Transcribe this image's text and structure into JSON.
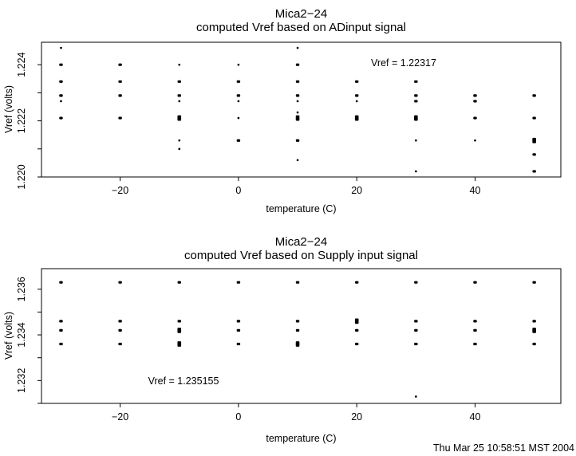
{
  "page": {
    "footer": "Thu Mar 25 10:58:51 MST 2004"
  },
  "chart_data": [
    {
      "type": "scatter",
      "title": "Mica2−24",
      "subtitle": "computed Vref based on ADinput signal",
      "xlabel": "temperature (C)",
      "ylabel": "Vref (volts)",
      "annotation": "Vref = 1.22317",
      "annotation_at": {
        "x": 28,
        "y": 1.2241
      },
      "xlim": [
        -33.3,
        54.5
      ],
      "ylim": [
        1.22,
        1.2248
      ],
      "xticks": [
        -20,
        0,
        20,
        40
      ],
      "xtick_labels": [
        "−20",
        "0",
        "20",
        "40"
      ],
      "yticks": [
        1.22,
        1.221,
        1.222,
        1.223,
        1.224
      ],
      "ytick_labels": [
        "1.220",
        "",
        "1.222",
        "",
        "1.224"
      ],
      "grid": false,
      "marker_color": "#000000",
      "points": [
        [
          -30,
          1.2246,
          1
        ],
        [
          -30,
          1.224,
          2
        ],
        [
          -30,
          1.2234,
          2
        ],
        [
          -30,
          1.2229,
          2
        ],
        [
          -30,
          1.2227,
          1
        ],
        [
          -30,
          1.2221,
          2
        ],
        [
          -20,
          1.224,
          2
        ],
        [
          -20,
          1.2234,
          2
        ],
        [
          -20,
          1.2229,
          2
        ],
        [
          -20,
          1.2221,
          2
        ],
        [
          -10,
          1.224,
          1
        ],
        [
          -10,
          1.2234,
          2
        ],
        [
          -10,
          1.2229,
          2
        ],
        [
          -10,
          1.2227,
          1
        ],
        [
          -10,
          1.2221,
          3
        ],
        [
          -10,
          1.2213,
          1
        ],
        [
          -10,
          1.221,
          1
        ],
        [
          0,
          1.224,
          1
        ],
        [
          0,
          1.2234,
          2
        ],
        [
          0,
          1.2229,
          2
        ],
        [
          0,
          1.2227,
          1
        ],
        [
          0,
          1.2221,
          1
        ],
        [
          0,
          1.2213,
          2
        ],
        [
          10,
          1.2246,
          1
        ],
        [
          10,
          1.224,
          2
        ],
        [
          10,
          1.2234,
          2
        ],
        [
          10,
          1.2229,
          2
        ],
        [
          10,
          1.2227,
          1
        ],
        [
          10,
          1.2223,
          1
        ],
        [
          10,
          1.2221,
          3
        ],
        [
          10,
          1.2213,
          2
        ],
        [
          10,
          1.2206,
          1
        ],
        [
          20,
          1.2234,
          2
        ],
        [
          20,
          1.2229,
          2
        ],
        [
          20,
          1.2227,
          1
        ],
        [
          20,
          1.2221,
          3
        ],
        [
          30,
          1.2234,
          2
        ],
        [
          30,
          1.2229,
          2
        ],
        [
          30,
          1.2227,
          2
        ],
        [
          30,
          1.2221,
          3
        ],
        [
          30,
          1.2213,
          1
        ],
        [
          30,
          1.2202,
          1
        ],
        [
          40,
          1.2229,
          2
        ],
        [
          40,
          1.2227,
          2
        ],
        [
          40,
          1.2221,
          2
        ],
        [
          40,
          1.2213,
          1
        ],
        [
          50,
          1.2229,
          2
        ],
        [
          50,
          1.2221,
          2
        ],
        [
          50,
          1.2213,
          3
        ],
        [
          50,
          1.2208,
          2
        ],
        [
          50,
          1.2202,
          2
        ]
      ]
    },
    {
      "type": "scatter",
      "title": "Mica2−24",
      "subtitle": "computed Vref based on Supply input signal",
      "xlabel": "temperature (C)",
      "ylabel": "Vref (volts)",
      "annotation": "Vref = 1.235155",
      "annotation_at": {
        "x": -9.3,
        "y": 1.232
      },
      "xlim": [
        -33.3,
        54.5
      ],
      "ylim": [
        1.231,
        1.2369
      ],
      "xticks": [
        -20,
        0,
        20,
        40
      ],
      "xtick_labels": [
        "−20",
        "0",
        "20",
        "40"
      ],
      "yticks": [
        1.231,
        1.232,
        1.233,
        1.234,
        1.235,
        1.236
      ],
      "ytick_labels": [
        "",
        "1.232",
        "",
        "1.234",
        "",
        "1.236"
      ],
      "grid": false,
      "marker_color": "#000000",
      "points": [
        [
          -30,
          1.2363,
          2
        ],
        [
          -30,
          1.2346,
          2
        ],
        [
          -30,
          1.2342,
          2
        ],
        [
          -30,
          1.2336,
          2
        ],
        [
          -20,
          1.2363,
          2
        ],
        [
          -20,
          1.2346,
          2
        ],
        [
          -20,
          1.2342,
          2
        ],
        [
          -20,
          1.2336,
          2
        ],
        [
          -10,
          1.2363,
          2
        ],
        [
          -10,
          1.2346,
          2
        ],
        [
          -10,
          1.2342,
          3
        ],
        [
          -10,
          1.2336,
          3
        ],
        [
          0,
          1.2363,
          2
        ],
        [
          0,
          1.2346,
          2
        ],
        [
          0,
          1.2342,
          2
        ],
        [
          0,
          1.2336,
          2
        ],
        [
          10,
          1.2363,
          2
        ],
        [
          10,
          1.2346,
          2
        ],
        [
          10,
          1.2342,
          2
        ],
        [
          10,
          1.2336,
          3
        ],
        [
          20,
          1.2363,
          2
        ],
        [
          20,
          1.2346,
          3
        ],
        [
          20,
          1.2342,
          2
        ],
        [
          20,
          1.2336,
          2
        ],
        [
          30,
          1.2363,
          2
        ],
        [
          30,
          1.2346,
          2
        ],
        [
          30,
          1.2342,
          2
        ],
        [
          30,
          1.2336,
          2
        ],
        [
          30,
          1.2313,
          1
        ],
        [
          40,
          1.2363,
          2
        ],
        [
          40,
          1.2346,
          2
        ],
        [
          40,
          1.2342,
          2
        ],
        [
          40,
          1.2336,
          2
        ],
        [
          50,
          1.2363,
          2
        ],
        [
          50,
          1.2346,
          2
        ],
        [
          50,
          1.2342,
          3
        ],
        [
          50,
          1.2336,
          2
        ]
      ]
    }
  ]
}
